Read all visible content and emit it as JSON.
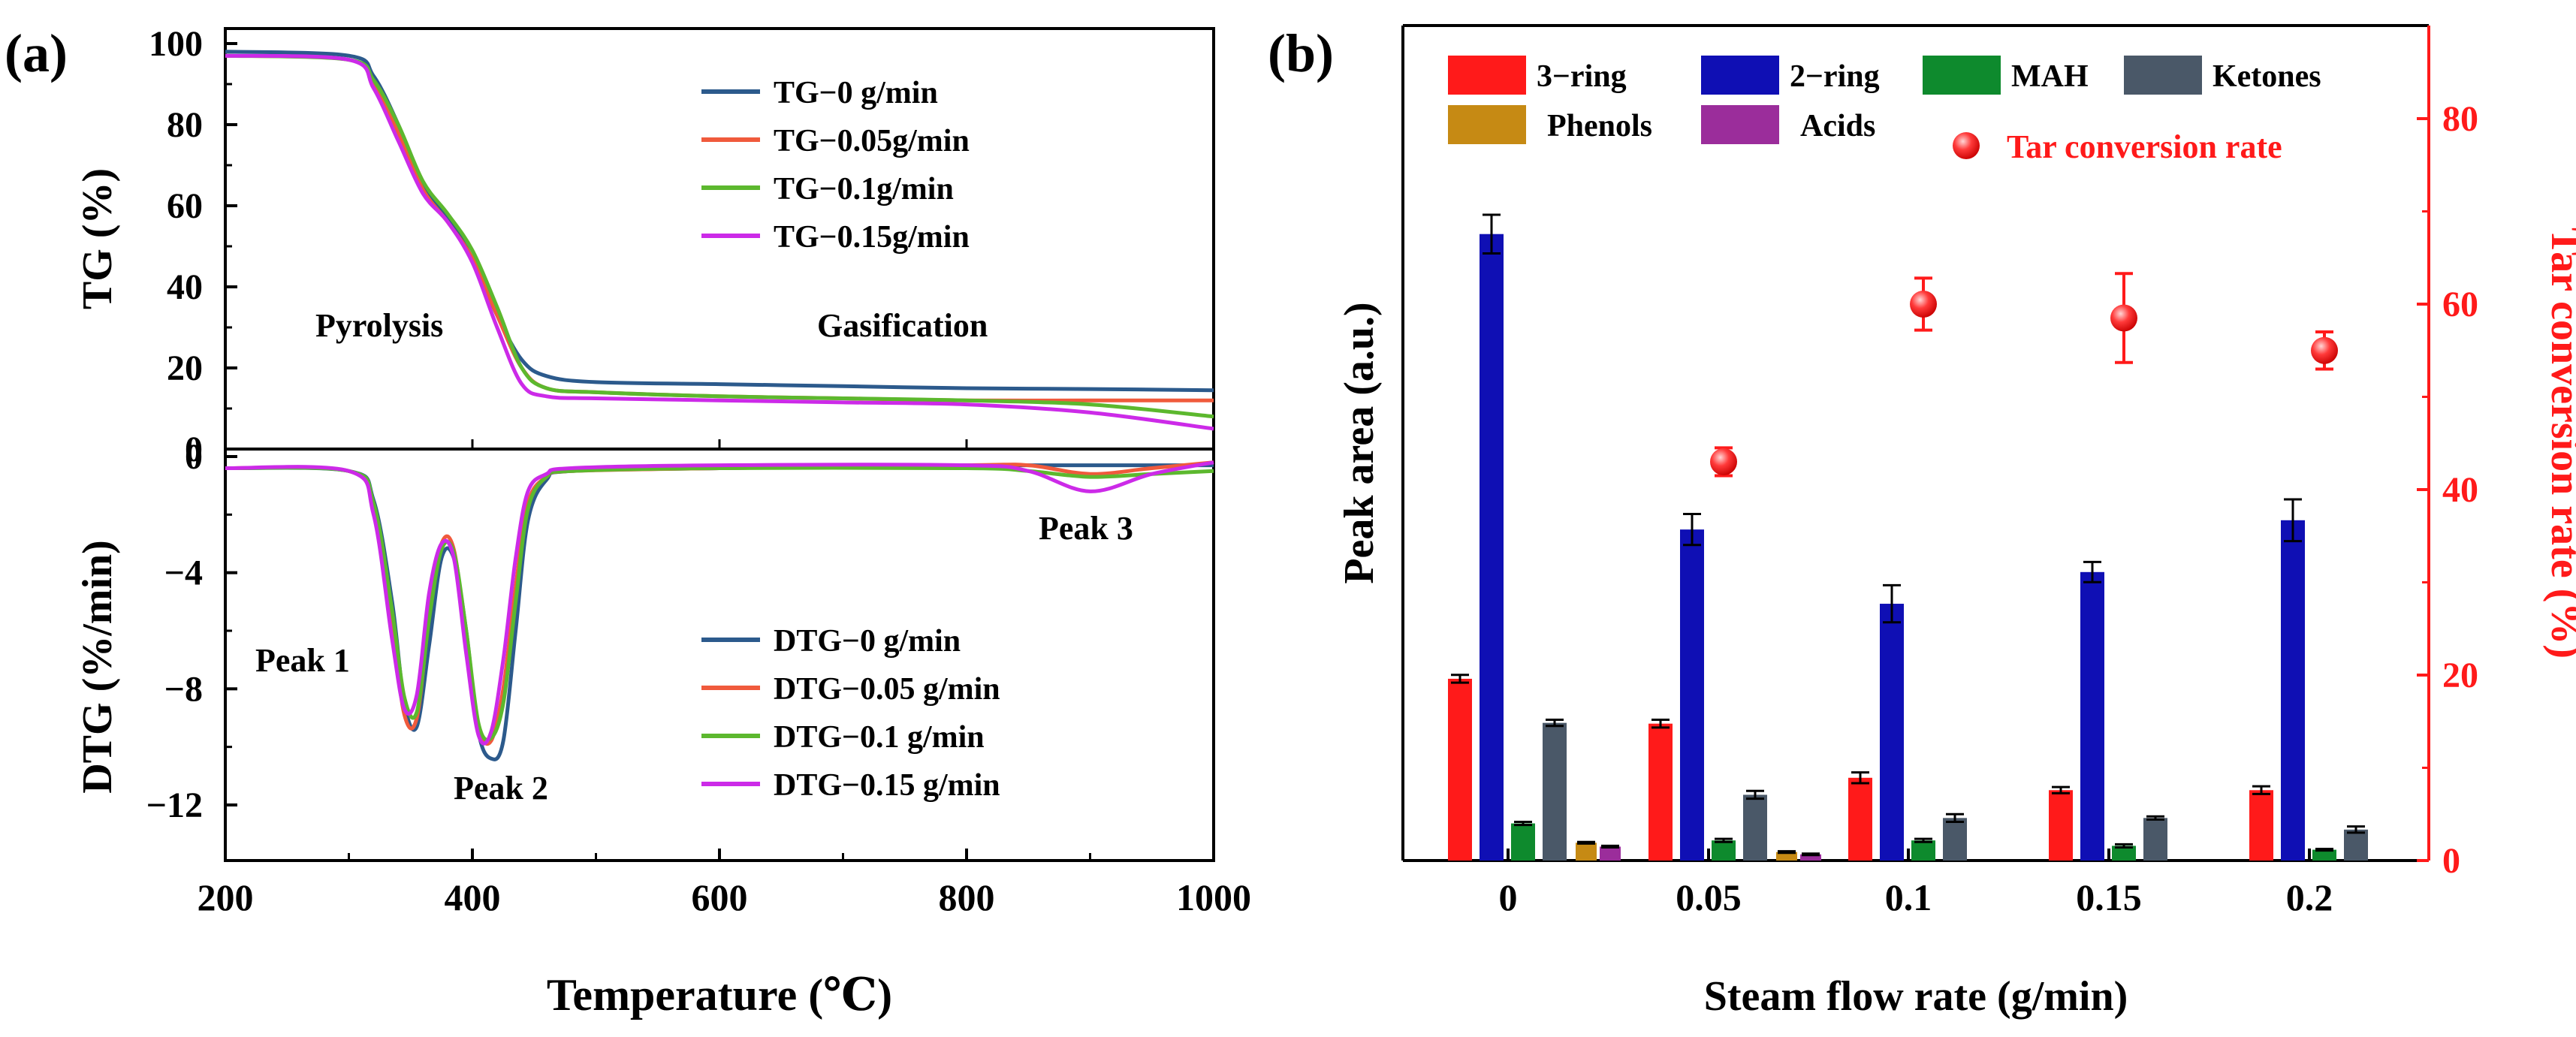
{
  "panel_a": {
    "label": "(a)",
    "xlabel": "Temperature (℃)",
    "xticks": [
      "200",
      "400",
      "600",
      "800",
      "1000"
    ],
    "tg": {
      "ylabel": "TG (%)",
      "yticks": [
        "0",
        "20",
        "40",
        "60",
        "80",
        "100"
      ],
      "legend": [
        "TG−0 g/min",
        "TG−0.05g/min",
        "TG−0.1g/min",
        "TG−0.15g/min"
      ],
      "annotations": {
        "pyrolysis": "Pyrolysis",
        "gasification": "Gasification"
      }
    },
    "dtg": {
      "ylabel": "DTG (%/min)",
      "yticks": [
        "0",
        "−4",
        "−8",
        "−12"
      ],
      "legend": [
        "DTG−0 g/min",
        "DTG−0.05 g/min",
        "DTG−0.1 g/min",
        "DTG−0.15 g/min"
      ],
      "annotations": {
        "peak1": "Peak 1",
        "peak2": "Peak 2",
        "peak3": "Peak 3"
      }
    }
  },
  "panel_b": {
    "label": "(b)",
    "xlabel": "Steam flow rate (g/min)",
    "ylabel_left": "Peak area (a.u.)",
    "ylabel_right": "Tar conversion rate (%)",
    "yticks_right": [
      "0",
      "20",
      "40",
      "60",
      "80"
    ],
    "categories": [
      "0",
      "0.05",
      "0.1",
      "0.15",
      "0.2"
    ],
    "legend": [
      "3−ring",
      "2−ring",
      "MAH",
      "Ketones",
      "Phenols",
      "Acids",
      "Tar conversion rate"
    ]
  },
  "chart_data": [
    {
      "type": "line",
      "panel": "(a) TG",
      "xlabel": "Temperature (℃)",
      "ylabel": "TG (%)",
      "xlim": [
        200,
        1000
      ],
      "ylim": [
        0,
        100
      ],
      "series": [
        {
          "name": "TG−0 g/min",
          "color": "#2c5a8c",
          "x": [
            200,
            300,
            320,
            340,
            360,
            380,
            400,
            420,
            440,
            460,
            500,
            600,
            700,
            800,
            900,
            1000
          ],
          "y": [
            98,
            97,
            92,
            80,
            65,
            57,
            47,
            33,
            22,
            18,
            16.5,
            16,
            15.5,
            15,
            14.8,
            14.5
          ]
        },
        {
          "name": "TG−0.05g/min",
          "color": "#f05a3c",
          "x": [
            200,
            300,
            320,
            340,
            360,
            380,
            400,
            420,
            440,
            460,
            500,
            600,
            700,
            800,
            900,
            1000
          ],
          "y": [
            97,
            96,
            90,
            78,
            64,
            56,
            47,
            33,
            20,
            15,
            14,
            13,
            12.5,
            12,
            12,
            12
          ]
        },
        {
          "name": "TG−0.1g/min",
          "color": "#5cb82e",
          "x": [
            200,
            300,
            320,
            340,
            360,
            380,
            400,
            420,
            440,
            460,
            500,
            600,
            700,
            800,
            900,
            1000
          ],
          "y": [
            97,
            96,
            91,
            80,
            66,
            58,
            49,
            35,
            20,
            15,
            14,
            13,
            12.5,
            12,
            11,
            8
          ]
        },
        {
          "name": "TG−0.15g/min",
          "color": "#cc2ae8",
          "x": [
            200,
            300,
            320,
            340,
            360,
            380,
            400,
            420,
            440,
            460,
            500,
            600,
            700,
            800,
            900,
            1000
          ],
          "y": [
            97,
            96,
            89,
            76,
            63,
            56,
            46,
            30,
            16,
            13,
            12.5,
            12,
            11.5,
            11,
            9,
            5
          ]
        }
      ]
    },
    {
      "type": "line",
      "panel": "(a) DTG",
      "xlabel": "Temperature (℃)",
      "ylabel": "DTG (%/min)",
      "xlim": [
        200,
        1000
      ],
      "ylim": [
        -14,
        0
      ],
      "series": [
        {
          "name": "DTG−0 g/min",
          "color": "#2c5a8c",
          "x": [
            200,
            300,
            320,
            335,
            345,
            355,
            365,
            375,
            385,
            395,
            405,
            415,
            425,
            435,
            445,
            460,
            480,
            600,
            800,
            850,
            900,
            950,
            1000
          ],
          "y": [
            -0.4,
            -0.5,
            -1.5,
            -5,
            -8.5,
            -9.3,
            -6.5,
            -3.5,
            -3.5,
            -6,
            -9.5,
            -10.4,
            -9.8,
            -6,
            -2.2,
            -0.8,
            -0.5,
            -0.4,
            -0.3,
            -0.3,
            -0.3,
            -0.3,
            -0.3
          ]
        },
        {
          "name": "DTG−0.05 g/min",
          "color": "#f05a3c",
          "x": [
            200,
            300,
            320,
            335,
            345,
            355,
            365,
            375,
            385,
            395,
            405,
            415,
            425,
            435,
            445,
            460,
            480,
            600,
            800,
            850,
            900,
            950,
            1000
          ],
          "y": [
            -0.4,
            -0.5,
            -1.8,
            -5.8,
            -8.9,
            -9.0,
            -5.5,
            -3.0,
            -3.2,
            -6.3,
            -9.3,
            -9.8,
            -8.0,
            -4.5,
            -1.6,
            -0.7,
            -0.5,
            -0.4,
            -0.3,
            -0.3,
            -0.6,
            -0.4,
            -0.2
          ]
        },
        {
          "name": "DTG−0.1 g/min",
          "color": "#5cb82e",
          "x": [
            200,
            300,
            320,
            335,
            345,
            355,
            365,
            375,
            385,
            395,
            405,
            415,
            425,
            435,
            445,
            460,
            480,
            600,
            800,
            850,
            900,
            950,
            1000
          ],
          "y": [
            -0.4,
            -0.5,
            -1.6,
            -5.3,
            -8.3,
            -8.8,
            -5.6,
            -3.2,
            -3.3,
            -6.0,
            -9.2,
            -9.7,
            -8.5,
            -5.0,
            -1.8,
            -0.7,
            -0.5,
            -0.4,
            -0.4,
            -0.5,
            -0.7,
            -0.6,
            -0.5
          ]
        },
        {
          "name": "DTG−0.15 g/min",
          "color": "#cc2ae8",
          "x": [
            200,
            300,
            320,
            335,
            345,
            355,
            365,
            375,
            385,
            395,
            405,
            415,
            425,
            435,
            445,
            460,
            480,
            600,
            800,
            850,
            900,
            950,
            1000
          ],
          "y": [
            -0.4,
            -0.5,
            -2.0,
            -6.3,
            -8.7,
            -8.2,
            -4.7,
            -3.0,
            -3.5,
            -6.8,
            -9.6,
            -9.5,
            -7.0,
            -3.5,
            -1.2,
            -0.6,
            -0.4,
            -0.3,
            -0.3,
            -0.5,
            -1.2,
            -0.6,
            -0.2
          ]
        }
      ]
    },
    {
      "type": "bar",
      "panel": "(b)",
      "xlabel": "Steam flow rate (g/min)",
      "ylabel": "Peak area (a.u.)",
      "y_tick_labels": "none",
      "categories": [
        "0",
        "0.05",
        "0.1",
        "0.15",
        "0.2"
      ],
      "series": [
        {
          "name": "3−ring",
          "color": "#ff1a1a",
          "values": [
            2.35,
            1.77,
            1.07,
            0.91,
            0.91
          ],
          "errors": [
            0.05,
            0.05,
            0.07,
            0.04,
            0.05
          ]
        },
        {
          "name": "2−ring",
          "color": "#0f0fb4",
          "values": [
            8.1,
            4.28,
            3.32,
            3.73,
            4.4
          ],
          "errors": [
            0.25,
            0.2,
            0.24,
            0.13,
            0.27
          ]
        },
        {
          "name": "MAH",
          "color": "#0e8a2d",
          "values": [
            0.48,
            0.26,
            0.26,
            0.19,
            0.14
          ],
          "errors": [
            0.02,
            0.02,
            0.02,
            0.02,
            0.01
          ]
        },
        {
          "name": "Ketones",
          "color": "#4a5868",
          "values": [
            1.78,
            0.85,
            0.55,
            0.55,
            0.4
          ],
          "errors": [
            0.04,
            0.05,
            0.05,
            0.02,
            0.04
          ]
        },
        {
          "name": "Phenols",
          "color": "#c68a14",
          "values": [
            0.23,
            0.11,
            0,
            0,
            0
          ],
          "errors": [
            0.01,
            0.01,
            0,
            0,
            0
          ]
        },
        {
          "name": "Acids",
          "color": "#9b2d9b",
          "values": [
            0.18,
            0.08,
            0,
            0,
            0
          ],
          "errors": [
            0.01,
            0.01,
            0,
            0,
            0
          ]
        }
      ]
    },
    {
      "type": "scatter",
      "panel": "(b) right axis",
      "ylabel": "Tar conversion rate (%)",
      "ylim": [
        0,
        90
      ],
      "x": [
        "0.05",
        "0.1",
        "0.15",
        "0.2"
      ],
      "series": [
        {
          "name": "Tar conversion rate",
          "color": "#ff2020",
          "values": [
            43,
            60,
            58.5,
            55
          ],
          "errors": [
            1.5,
            2.8,
            4.8,
            2.0
          ]
        }
      ]
    }
  ]
}
